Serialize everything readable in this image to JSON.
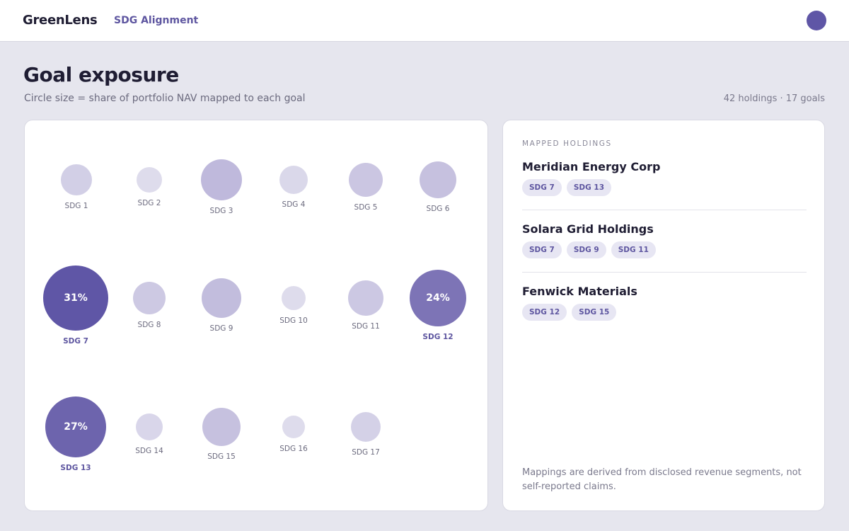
{
  "header": {
    "brand": "GreenLens",
    "nav_link": "SDG Alignment"
  },
  "page": {
    "title": "Goal exposure",
    "subtitle": "Circle size = share of portfolio NAV mapped to each goal",
    "meta": "42 holdings · 17 goals"
  },
  "goals": [
    {
      "label": "SDG 1",
      "color": "#d2cfe6"
    },
    {
      "label": "SDG 2",
      "color": "#dedcec"
    },
    {
      "label": "SDG 3",
      "color": "#bfb9dc"
    },
    {
      "label": "SDG 4",
      "color": "#dad8ea"
    },
    {
      "label": "SDG 5",
      "color": "#cbc6e2"
    },
    {
      "label": "SDG 6",
      "color": "#c6c1df"
    },
    {
      "label": "SDG 7",
      "value": "31%",
      "color": "#5f56a6",
      "highlighted": true
    },
    {
      "label": "SDG 8",
      "color": "#cdc9e3"
    },
    {
      "label": "SDG 9",
      "color": "#c2bddd"
    },
    {
      "label": "SDG 10",
      "color": "#dedcec"
    },
    {
      "label": "SDG 11",
      "color": "#ccc8e3"
    },
    {
      "label": "SDG 12",
      "value": "24%",
      "color": "#7d74b6",
      "highlighted": true
    },
    {
      "label": "SDG 13",
      "value": "27%",
      "color": "#6d64ad",
      "highlighted": true
    },
    {
      "label": "SDG 14",
      "color": "#d9d6ea"
    },
    {
      "label": "SDG 15",
      "color": "#c6c1df"
    },
    {
      "label": "SDG 16",
      "color": "#dedcec"
    },
    {
      "label": "SDG 17",
      "color": "#d4d1e7"
    }
  ],
  "sidebar": {
    "heading": "MAPPED HOLDINGS",
    "holdings": [
      {
        "name": "Meridian Energy Corp",
        "tags": [
          "SDG 7",
          "SDG 13"
        ]
      },
      {
        "name": "Solara Grid Holdings",
        "tags": [
          "SDG 7",
          "SDG 9",
          "SDG 11"
        ]
      },
      {
        "name": "Fenwick Materials",
        "tags": [
          "SDG 12",
          "SDG 15"
        ]
      }
    ],
    "footnote": "Mappings are derived from disclosed revenue segments, not self-reported claims."
  }
}
